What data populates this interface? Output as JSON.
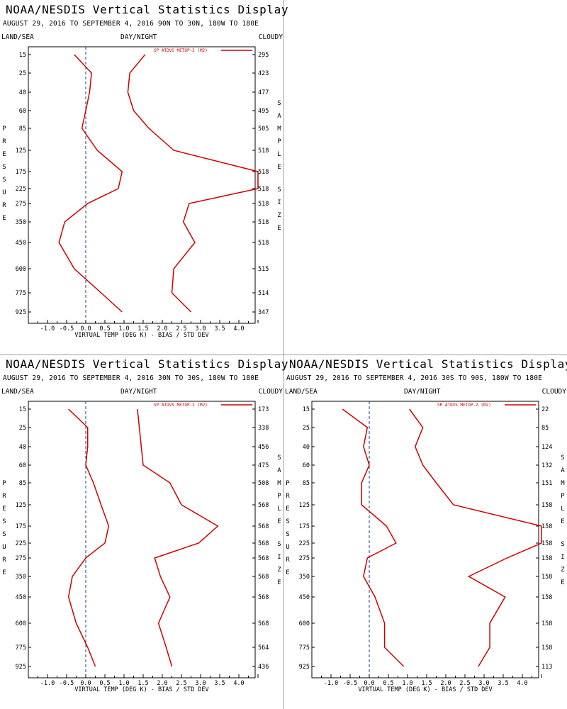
{
  "empty_panel": {
    "present": true
  },
  "charts": [
    {
      "title": "NOAA/NESDIS Vertical Statistics Display",
      "subtitle": "AUGUST 29, 2016 TO SEPTEMBER 4, 2016  90N TO 30N, 180W TO 180E",
      "header_left": "LAND/SEA",
      "header_mid": "DAY/NIGHT",
      "header_right": "CLOUDY",
      "legend": "SP ATOVS METOP-2 (M2)",
      "xlabel": "VIRTUAL TEMP (DEG K) - BIAS / STD DEV",
      "ylabel": "PRESSURE",
      "right_label": "SAMPLE SIZE",
      "pressure_levels": [
        "15",
        "25",
        "40",
        "60",
        "85",
        "125",
        "175",
        "225",
        "275",
        "350",
        "450",
        "600",
        "775",
        "925"
      ],
      "sample_sizes": [
        "295",
        "423",
        "477",
        "495",
        "505",
        "518",
        "518",
        "518",
        "518",
        "518",
        "518",
        "515",
        "514",
        "347"
      ],
      "x_ticks": [
        "-1.0",
        "-0.5",
        "0.0",
        "0.5",
        "1.0",
        "1.5",
        "2.0",
        "2.5",
        "3.0",
        "3.5",
        "4.0"
      ],
      "chart_data": {
        "type": "line",
        "xlim": [
          -1.5,
          4.5
        ],
        "series": [
          {
            "role": "bias",
            "values": [
              -0.3,
              0.15,
              0.1,
              0.0,
              -0.1,
              0.3,
              0.95,
              0.85,
              0.05,
              -0.55,
              -0.7,
              -0.3,
              0.4,
              0.95
            ]
          },
          {
            "role": "stddev",
            "values": [
              1.55,
              1.15,
              1.1,
              1.25,
              1.65,
              2.3,
              4.5,
              4.5,
              2.7,
              2.55,
              2.85,
              2.3,
              2.25,
              2.75
            ]
          }
        ]
      }
    },
    {
      "title": "NOAA/NESDIS Vertical Statistics Display",
      "subtitle": "AUGUST 29, 2016 TO SEPTEMBER 4, 2016  30N TO 30S, 180W TO 180E",
      "header_left": "LAND/SEA",
      "header_mid": "DAY/NIGHT",
      "header_right": "CLOUDY",
      "legend": "SP ATOVS METOP-2 (M2)",
      "xlabel": "VIRTUAL TEMP (DEG K) - BIAS / STD DEV",
      "ylabel": "PRESSURE",
      "right_label": "SAMPLE SIZE",
      "pressure_levels": [
        "15",
        "25",
        "40",
        "60",
        "85",
        "125",
        "175",
        "225",
        "275",
        "350",
        "450",
        "600",
        "775",
        "925"
      ],
      "sample_sizes": [
        "173",
        "338",
        "456",
        "475",
        "508",
        "568",
        "568",
        "568",
        "568",
        "568",
        "568",
        "568",
        "564",
        "436"
      ],
      "x_ticks": [
        "-1.0",
        "-0.5",
        "0.0",
        "0.5",
        "1.0",
        "1.5",
        "2.0",
        "2.5",
        "3.0",
        "3.5",
        "4.0"
      ],
      "chart_data": {
        "type": "line",
        "xlim": [
          -1.5,
          4.5
        ],
        "series": [
          {
            "role": "bias",
            "values": [
              -0.45,
              0.05,
              0.05,
              0.0,
              0.2,
              0.4,
              0.6,
              0.5,
              0.0,
              -0.35,
              -0.45,
              -0.25,
              0.05,
              0.25
            ]
          },
          {
            "role": "stddev",
            "values": [
              1.35,
              1.4,
              1.45,
              1.5,
              2.2,
              2.5,
              3.45,
              2.95,
              1.8,
              1.95,
              2.2,
              1.9,
              2.1,
              2.25
            ]
          }
        ]
      }
    },
    {
      "title": "NOAA/NESDIS Vertical Statistics Display",
      "subtitle": "AUGUST 29, 2016 TO SEPTEMBER 4, 2016  30S TO 90S, 180W TO 180E",
      "header_left": "LAND/SEA",
      "header_mid": "DAY/NIGHT",
      "header_right": "CLOUDY",
      "legend": "SP ATOVS METOP-2 (M2)",
      "xlabel": "VIRTUAL TEMP (DEG K) - BIAS / STD DEV",
      "ylabel": "PRESSURE",
      "right_label": "SAMPLE SIZE",
      "pressure_levels": [
        "15",
        "25",
        "40",
        "60",
        "85",
        "125",
        "175",
        "225",
        "275",
        "350",
        "450",
        "600",
        "775",
        "925"
      ],
      "sample_sizes": [
        "22",
        "85",
        "124",
        "132",
        "151",
        "158",
        "158",
        "158",
        "158",
        "158",
        "158",
        "158",
        "158",
        "113"
      ],
      "x_ticks": [
        "-1.0",
        "-0.5",
        "0.0",
        "0.5",
        "1.0",
        "1.5",
        "2.0",
        "2.5",
        "3.0",
        "3.5",
        "4.0"
      ],
      "chart_data": {
        "type": "line",
        "xlim": [
          -1.5,
          4.5
        ],
        "series": [
          {
            "role": "bias",
            "values": [
              -0.7,
              -0.05,
              -0.15,
              0.0,
              -0.2,
              -0.2,
              0.45,
              0.7,
              -0.05,
              -0.15,
              0.15,
              0.4,
              0.4,
              0.9
            ]
          },
          {
            "role": "stddev",
            "values": [
              1.05,
              1.4,
              1.2,
              1.4,
              1.75,
              2.2,
              4.5,
              4.5,
              3.6,
              2.6,
              3.55,
              3.15,
              3.15,
              2.85
            ]
          }
        ]
      }
    }
  ]
}
